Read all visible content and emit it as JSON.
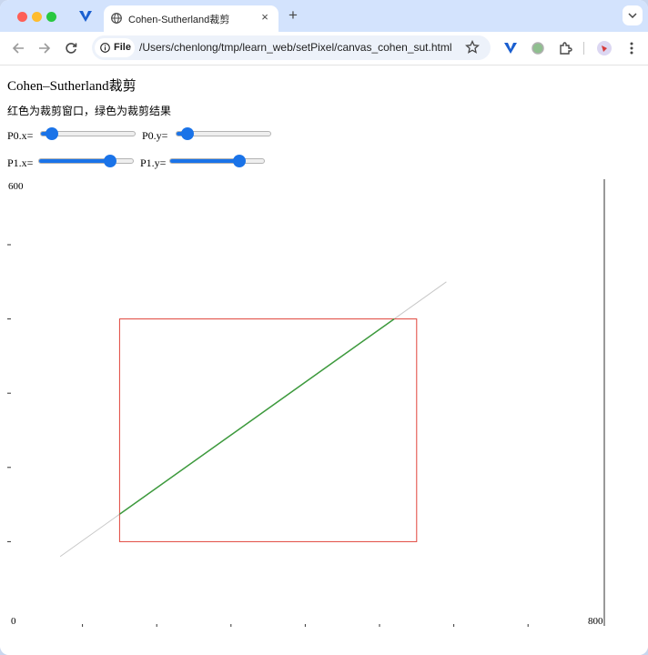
{
  "browser": {
    "tab_title": "Cohen-Sutherland裁剪",
    "new_tab_label": "+",
    "tab_close_label": "×",
    "scheme_label": "File",
    "url": "/Users/chenlong/tmp/learn_web/setPixel/canvas_cohen_sut.html",
    "icons": [
      "vivaldi-icon",
      "globe-icon",
      "info-icon",
      "star-icon",
      "extension-icon",
      "profile-icon",
      "more-icon"
    ]
  },
  "page": {
    "title": "Cohen–Sutherland裁剪",
    "description": "红色为裁剪窗口，绿色为裁剪结果",
    "sliders": [
      {
        "id": "p0x",
        "label": "P0.x=",
        "value": 0.12
      },
      {
        "id": "p0y",
        "label": "P0.y=",
        "value": 0.12
      },
      {
        "id": "p1x",
        "label": "P1.x=",
        "value": 0.75
      },
      {
        "id": "p1y",
        "label": "P1.y=",
        "value": 0.73
      }
    ],
    "canvas": {
      "label_600": "600",
      "label_0": "0",
      "label_800": "800",
      "x_ticks": [
        100,
        200,
        300,
        400,
        500,
        600,
        700
      ],
      "y_ticks": [
        100,
        200,
        300,
        400,
        500
      ],
      "clip_rect": {
        "x0": 150,
        "y0": 100,
        "x1": 550,
        "y1": 400
      },
      "line": {
        "x0": 70,
        "y0": 80,
        "x1": 590,
        "y1": 450
      },
      "colors": {
        "window": "#e0433a",
        "result": "#3d9a3d",
        "line": "#c8c8c8",
        "axis": "#333333"
      }
    }
  }
}
